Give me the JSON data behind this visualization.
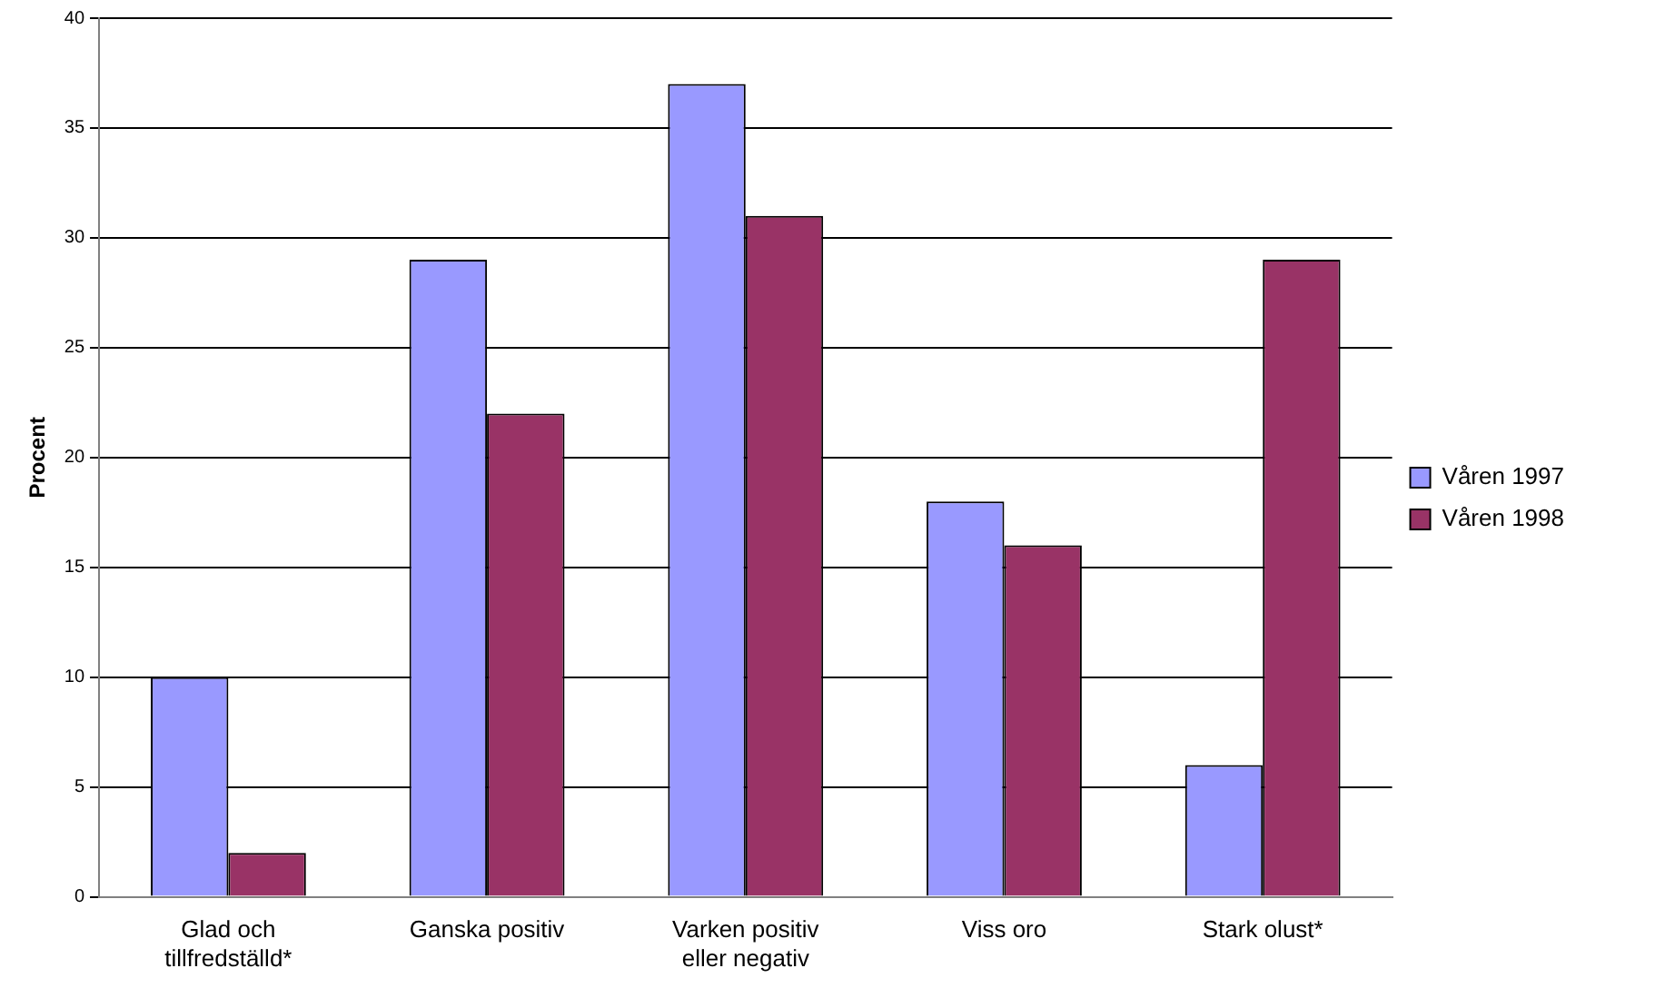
{
  "chart_data": {
    "type": "bar",
    "ylabel": "Procent",
    "categories": [
      "Glad och tillfredställd*",
      "Ganska positiv",
      "Varken positiv eller negativ",
      "Viss oro",
      "Stark olust*"
    ],
    "series": [
      {
        "name": "Våren 1997",
        "color": "#9999ff",
        "values": [
          10,
          29,
          37,
          18,
          6
        ]
      },
      {
        "name": "Våren 1998",
        "color": "#993366",
        "values": [
          2,
          22,
          31,
          16,
          29
        ]
      }
    ],
    "ylim": [
      0,
      40
    ],
    "yticks": [
      0,
      5,
      10,
      15,
      20,
      25,
      30,
      35,
      40
    ],
    "grid": "y",
    "legend": "right"
  }
}
